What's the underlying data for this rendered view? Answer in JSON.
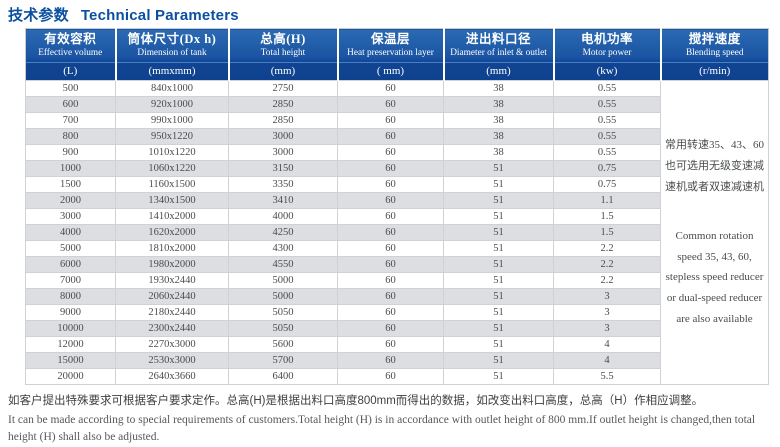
{
  "title": {
    "cn": "技术参数",
    "en": "Technical Parameters"
  },
  "colors": {
    "title_blue": "#0b4fa0",
    "header_blue_top": "#2b6ab3",
    "header_blue_bottom": "#0f4697",
    "row_alt_gray": "#dcdee1",
    "border_gray": "#ced2d5",
    "text_gray": "#4a4c4e"
  },
  "table": {
    "columns": [
      {
        "cn": "有效容积",
        "en": "Effective volume",
        "unit": "(L)"
      },
      {
        "cn": "筒体尺寸(Dx h)",
        "en": "Dimension of tank",
        "unit": "(mmxmm)"
      },
      {
        "cn": "总高(H)",
        "en": "Total height",
        "unit": "(mm)"
      },
      {
        "cn": "保温层",
        "en": "Heat preservation layer",
        "unit": "( mm)"
      },
      {
        "cn": "进出料口径",
        "en": "Diameter of inlet & outlet",
        "unit": "(mm)"
      },
      {
        "cn": "电机功率",
        "en": "Motor power",
        "unit": "(kw)"
      },
      {
        "cn": "搅拌速度",
        "en": "Blending speed",
        "unit": "(r/min)"
      }
    ],
    "rows": [
      [
        "500",
        "840x1000",
        "2750",
        "60",
        "38",
        "0.55"
      ],
      [
        "600",
        "920x1000",
        "2850",
        "60",
        "38",
        "0.55"
      ],
      [
        "700",
        "990x1000",
        "2850",
        "60",
        "38",
        "0.55"
      ],
      [
        "800",
        "950x1220",
        "3000",
        "60",
        "38",
        "0.55"
      ],
      [
        "900",
        "1010x1220",
        "3000",
        "60",
        "38",
        "0.55"
      ],
      [
        "1000",
        "1060x1220",
        "3150",
        "60",
        "51",
        "0.75"
      ],
      [
        "1500",
        "1160x1500",
        "3350",
        "60",
        "51",
        "0.75"
      ],
      [
        "2000",
        "1340x1500",
        "3410",
        "60",
        "51",
        "1.1"
      ],
      [
        "3000",
        "1410x2000",
        "4000",
        "60",
        "51",
        "1.5"
      ],
      [
        "4000",
        "1620x2000",
        "4250",
        "60",
        "51",
        "1.5"
      ],
      [
        "5000",
        "1810x2000",
        "4300",
        "60",
        "51",
        "2.2"
      ],
      [
        "6000",
        "1980x2000",
        "4550",
        "60",
        "51",
        "2.2"
      ],
      [
        "7000",
        "1930x2440",
        "5000",
        "60",
        "51",
        "2.2"
      ],
      [
        "8000",
        "2060x2440",
        "5000",
        "60",
        "51",
        "3"
      ],
      [
        "9000",
        "2180x2440",
        "5050",
        "60",
        "51",
        "3"
      ],
      [
        "10000",
        "2300x2440",
        "5050",
        "60",
        "51",
        "3"
      ],
      [
        "12000",
        "2270x3000",
        "5600",
        "60",
        "51",
        "4"
      ],
      [
        "15000",
        "2530x3000",
        "5700",
        "60",
        "51",
        "4"
      ],
      [
        "20000",
        "2640x3660",
        "6400",
        "60",
        "51",
        "5.5"
      ]
    ],
    "speed_note_cn": "常用转速35、43、60也可选用无级变速减速机或者双速减速机",
    "speed_note_en": "Common rotation speed 35, 43, 60, stepless speed reducer or dual-speed reducer are also available"
  },
  "footer": {
    "cn": "如客户提出特殊要求可根据客户要求定作。总高(H)是根据出料口高度800mm而得出的数据，如改变出料口高度，总高（H）作相应调整。",
    "en": "It can be made according to special requirements of customers.Total height (H) is in accordance with outlet height of 800 mm.If outlet height is changed,then total height (H) shall also be adjusted."
  }
}
